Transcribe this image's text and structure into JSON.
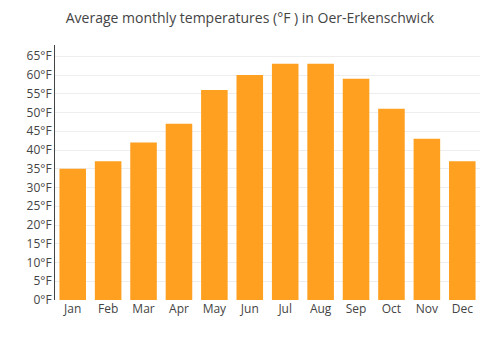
{
  "chart_data": {
    "type": "bar",
    "title": "Average monthly temperatures (°F ) in Oer-Erkenschwick",
    "categories": [
      "Jan",
      "Feb",
      "Mar",
      "Apr",
      "May",
      "Jun",
      "Jul",
      "Aug",
      "Sep",
      "Oct",
      "Nov",
      "Dec"
    ],
    "values": [
      35,
      37,
      42,
      47,
      56,
      60,
      63,
      63,
      59,
      51,
      43,
      37
    ],
    "color": "#FFA020",
    "ylim": [
      0,
      68
    ],
    "yticks": [
      {
        "value": 0,
        "label": "0°F"
      },
      {
        "value": 5,
        "label": "5°F"
      },
      {
        "value": 10,
        "label": "10°F"
      },
      {
        "value": 15,
        "label": "15°F"
      },
      {
        "value": 20,
        "label": "20°F"
      },
      {
        "value": 25,
        "label": "25°F"
      },
      {
        "value": 30,
        "label": "30°F"
      },
      {
        "value": 35,
        "label": "35°F"
      },
      {
        "value": 40,
        "label": "40°F"
      },
      {
        "value": 45,
        "label": "45°F"
      },
      {
        "value": 50,
        "label": "50°F"
      },
      {
        "value": 55,
        "label": "55°F"
      },
      {
        "value": 60,
        "label": "60°F"
      },
      {
        "value": 65,
        "label": "65°F"
      }
    ],
    "grid": true
  }
}
